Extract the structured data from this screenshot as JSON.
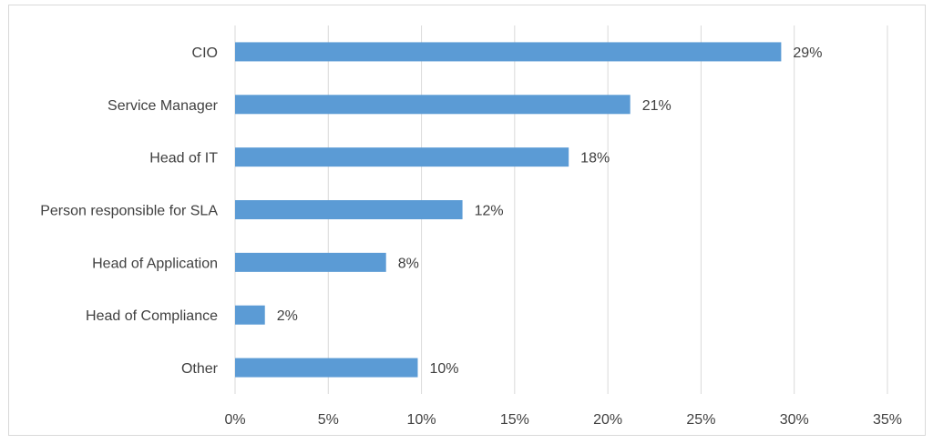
{
  "chart_data": {
    "type": "bar",
    "orientation": "horizontal",
    "categories": [
      "CIO",
      "Service Manager",
      "Head of IT",
      "Person responsible for SLA",
      "Head of Application",
      "Head of Compliance",
      "Other"
    ],
    "values": [
      29.3,
      21.2,
      17.9,
      12.2,
      8.1,
      1.6,
      9.8
    ],
    "data_labels": [
      "29%",
      "21%",
      "18%",
      "12%",
      "8%",
      "2%",
      "10%"
    ],
    "xlim": [
      0,
      35
    ],
    "x_ticks": [
      0,
      5,
      10,
      15,
      20,
      25,
      30,
      35
    ],
    "x_tick_labels": [
      "0%",
      "5%",
      "10%",
      "15%",
      "20%",
      "25%",
      "30%",
      "35%"
    ],
    "grid": "vertical",
    "legend": "none",
    "title": "",
    "xlabel": "",
    "ylabel": "",
    "bar_color": "#5b9bd5",
    "grid_color": "#d9d9d9",
    "text_color": "#404040"
  }
}
